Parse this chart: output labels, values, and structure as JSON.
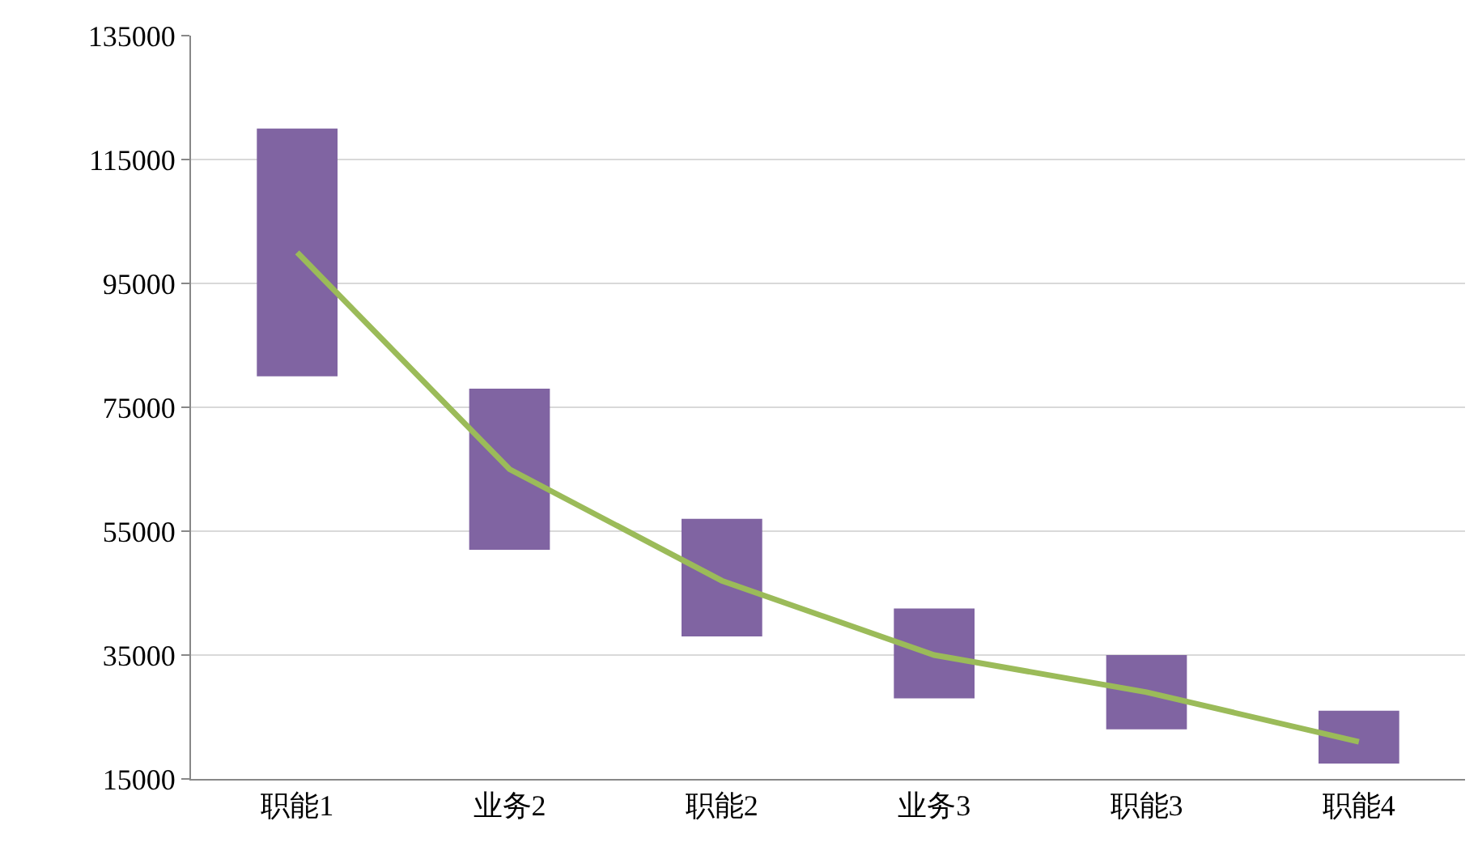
{
  "chart_data": {
    "type": "bar",
    "categories": [
      "职能1",
      "业务2",
      "职能2",
      "业务3",
      "职能3",
      "职能4"
    ],
    "series": [
      {
        "color": "#8064a2",
        "values": [
          40000,
          26000,
          19000,
          14500,
          12000,
          8500
        ],
        "base": [
          80000,
          52000,
          38000,
          28000,
          23000,
          17500
        ]
      },
      {
        "type": "line",
        "color": "#9bbb59",
        "values": [
          100000,
          65000,
          47000,
          35000,
          29000,
          21000
        ],
        "marker": "none",
        "line_style": "solid"
      }
    ],
    "ylim": [
      15000,
      135000
    ],
    "yticks": [
      15000,
      35000,
      55000,
      75000,
      95000,
      115000,
      135000
    ],
    "grid": "y"
  }
}
